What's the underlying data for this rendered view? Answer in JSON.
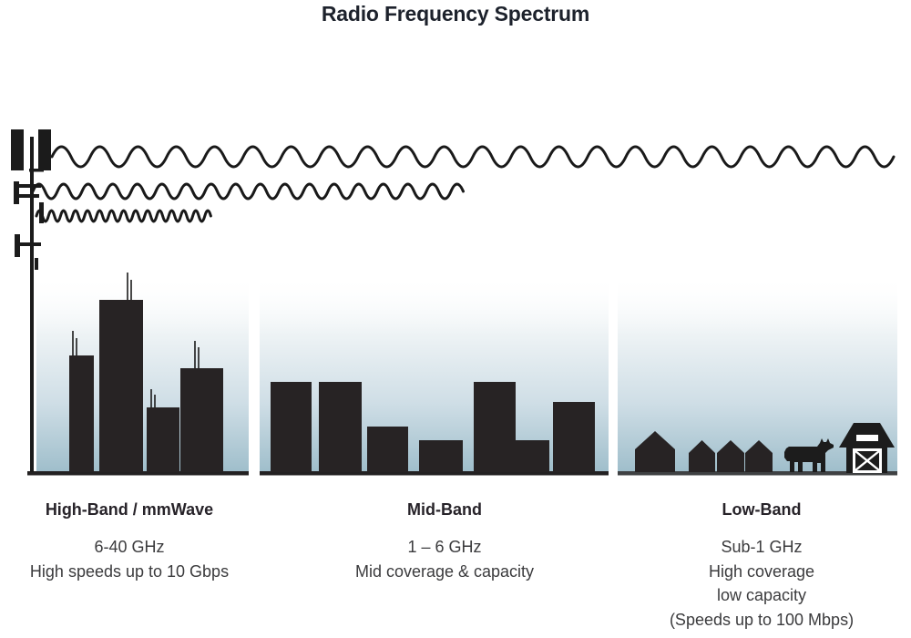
{
  "title": "Radio Frequency Spectrum",
  "bands": [
    {
      "name": "High-Band / mmWave",
      "lines": [
        "6-40 GHz",
        "High speeds up to 10 Gbps"
      ],
      "scene": "dense downtown skyscrapers",
      "wave": "shortest wavelength, shortest reach"
    },
    {
      "name": "Mid-Band",
      "lines": [
        "1 – 6 GHz",
        "Mid coverage & capacity"
      ],
      "scene": "mid-rise city buildings",
      "wave": "medium wavelength, medium reach"
    },
    {
      "name": "Low-Band",
      "lines": [
        "Sub-1 GHz",
        "High coverage",
        "low capacity",
        "(Speeds up to 100 Mbps)"
      ],
      "scene": "rural houses, cow and barn",
      "wave": "longest wavelength, longest reach"
    }
  ],
  "icons": {
    "cell_tower": "cell-tower-icon (black silhouette, left edge)",
    "long_wave": "low-band-long-wave-icon (top sine wave, spans full width)",
    "medium_wave": "mid-band-medium-wave-icon (middle sine wave, spans half width)",
    "short_wave": "high-band-short-wave-icon (bottom tight sine wave, short span)",
    "skyline_high": "skyscraper-skyline-icon",
    "skyline_mid": "midrise-skyline-icon",
    "houses": "house-icons",
    "cow": "cow-icon",
    "barn": "barn-icon"
  },
  "colors": {
    "ink": "#231f20",
    "sky_gradient_bottom": "#9fbecb",
    "ground_city": "#232122",
    "ground_rural": "#3f4143",
    "title_text": "#1d222c",
    "body_text": "#3b3b3d"
  }
}
